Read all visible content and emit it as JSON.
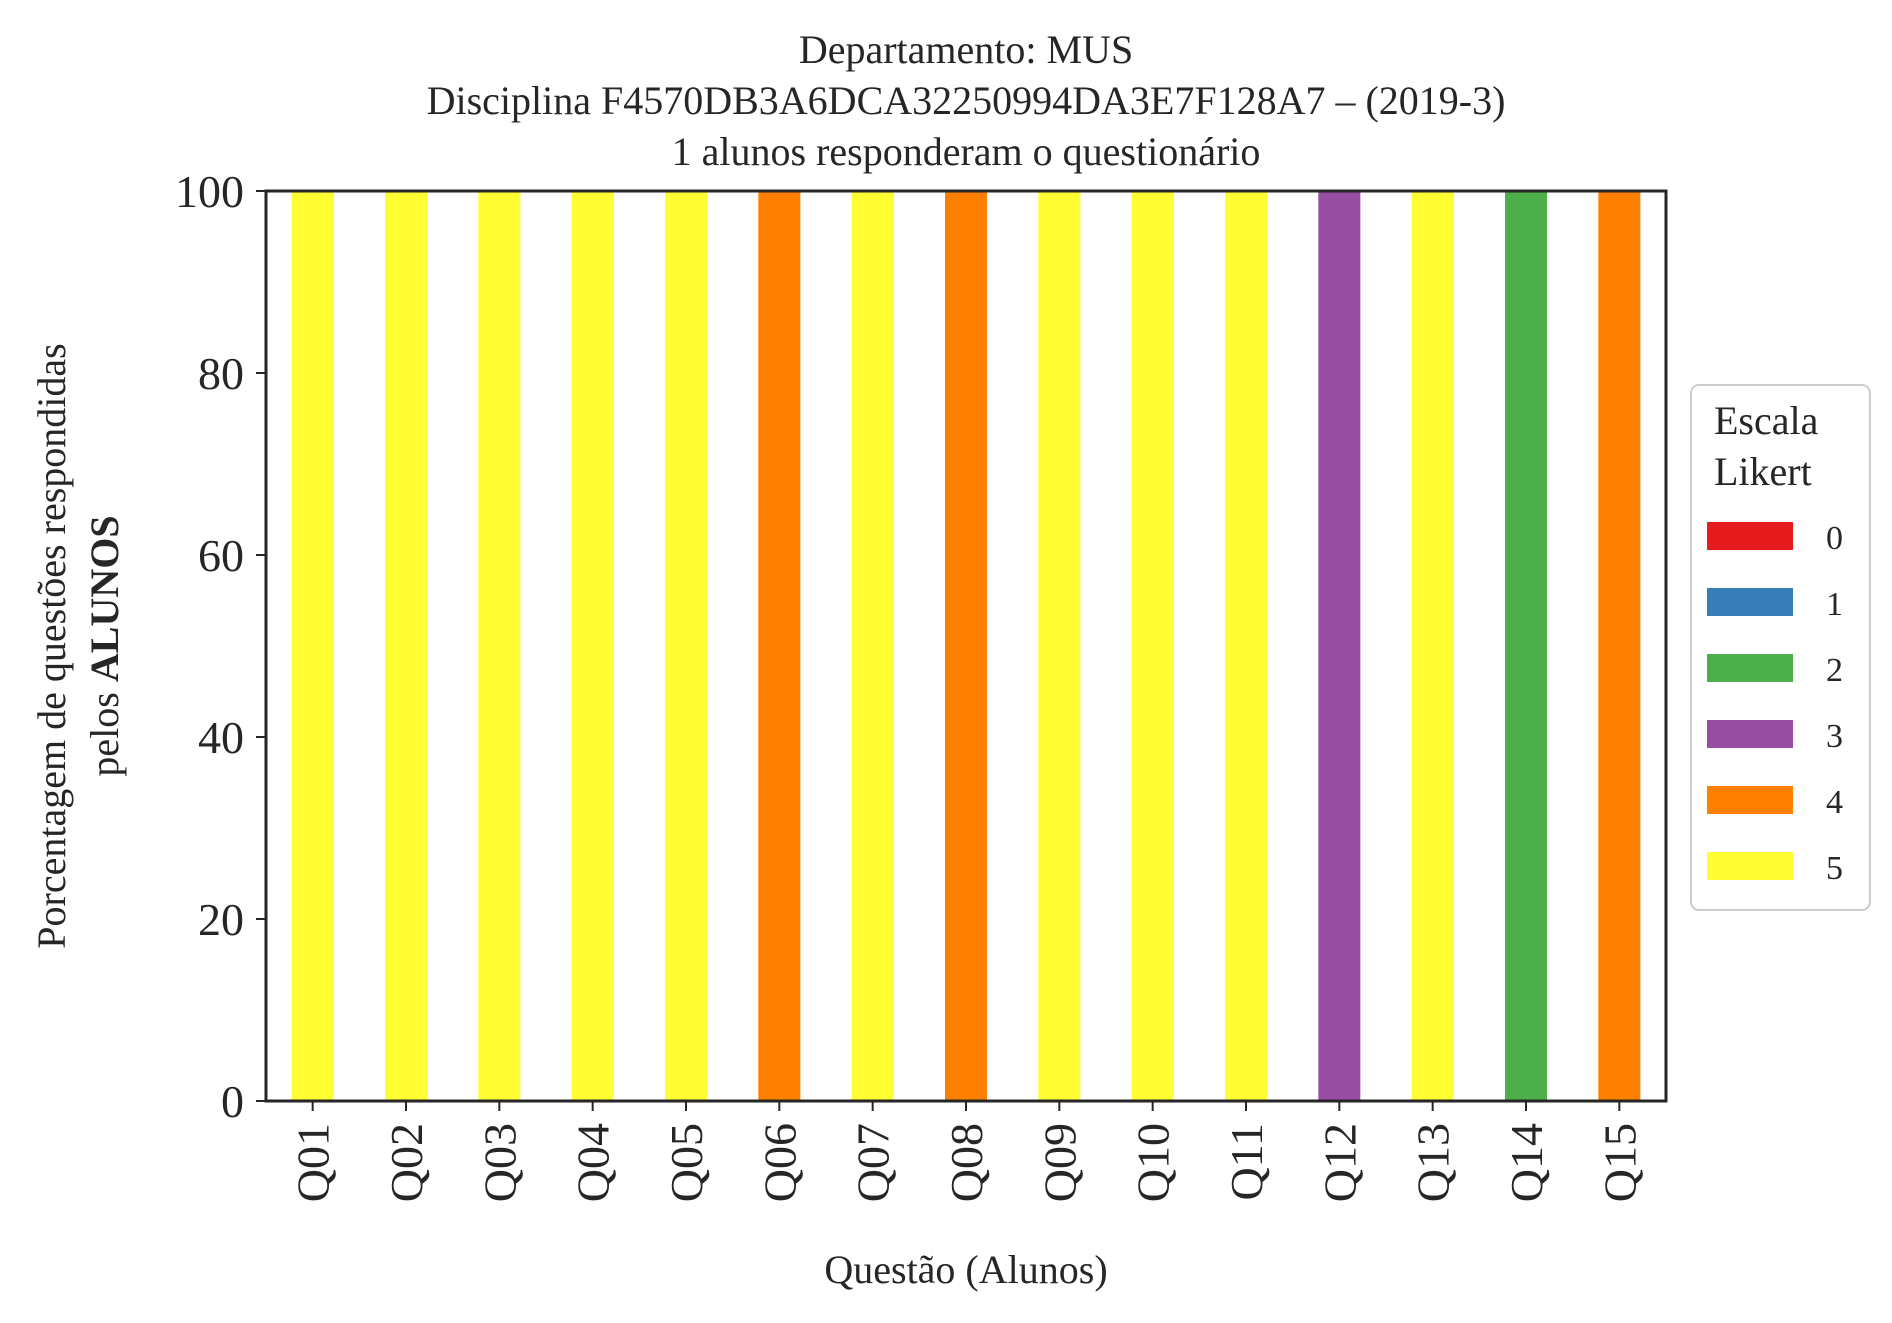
{
  "chart_data": {
    "type": "bar",
    "stacked": true,
    "title_lines": [
      "Departamento: MUS",
      "Disciplina F4570DB3A6DCA32250994DA3E7F128A7 – (2019-3)",
      "1 alunos responderam o questionário"
    ],
    "xlabel": "Questão (Alunos)",
    "ylabel_line1": "Porcentagem de questões respondidas",
    "ylabel_line2_prefix": "pelos ",
    "ylabel_line2_bold": "ALUNOS",
    "ylim": [
      0,
      100
    ],
    "yticks": [
      "0",
      "20",
      "40",
      "60",
      "80",
      "100"
    ],
    "grid": false,
    "categories": [
      "Q01",
      "Q02",
      "Q03",
      "Q04",
      "Q05",
      "Q06",
      "Q07",
      "Q08",
      "Q09",
      "Q10",
      "Q11",
      "Q12",
      "Q13",
      "Q14",
      "Q15"
    ],
    "series": [
      {
        "name": "0",
        "color": "#e41a1c",
        "values": [
          0,
          0,
          0,
          0,
          0,
          0,
          0,
          0,
          0,
          0,
          0,
          0,
          0,
          0,
          0
        ]
      },
      {
        "name": "1",
        "color": "#377eb8",
        "values": [
          0,
          0,
          0,
          0,
          0,
          0,
          0,
          0,
          0,
          0,
          0,
          0,
          0,
          0,
          0
        ]
      },
      {
        "name": "2",
        "color": "#4daf4a",
        "values": [
          0,
          0,
          0,
          0,
          0,
          0,
          0,
          0,
          0,
          0,
          0,
          0,
          0,
          100,
          0
        ]
      },
      {
        "name": "3",
        "color": "#984ea3",
        "values": [
          0,
          0,
          0,
          0,
          0,
          0,
          0,
          0,
          0,
          0,
          0,
          100,
          0,
          0,
          0
        ]
      },
      {
        "name": "4",
        "color": "#ff7f00",
        "values": [
          0,
          0,
          0,
          0,
          0,
          100,
          0,
          100,
          0,
          0,
          0,
          0,
          0,
          0,
          100
        ]
      },
      {
        "name": "5",
        "color": "#ffff33",
        "values": [
          100,
          100,
          100,
          100,
          100,
          0,
          100,
          0,
          100,
          100,
          100,
          0,
          100,
          0,
          0
        ]
      }
    ],
    "legend": {
      "title_line1": "Escala",
      "title_line2": "Likert",
      "placement": "center-right outside"
    }
  }
}
